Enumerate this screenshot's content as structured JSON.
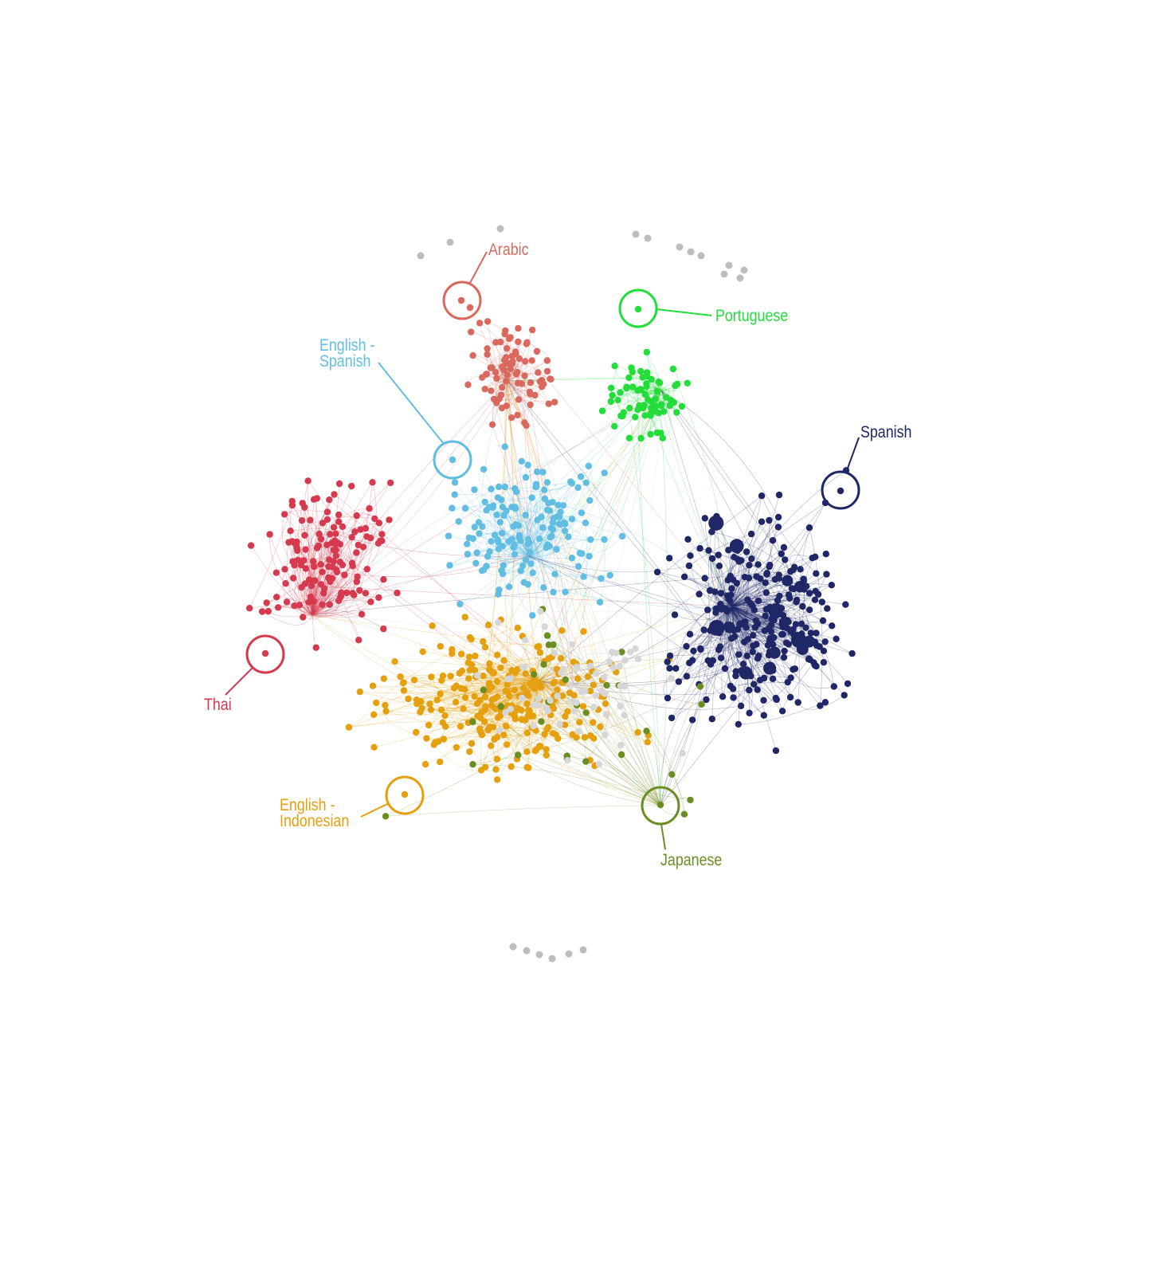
{
  "clusters": [
    {
      "key": "arabic",
      "label": "Arabic",
      "color": "#d9695f"
    },
    {
      "key": "portuguese",
      "label": "Portuguese",
      "color": "#22dd3a"
    },
    {
      "key": "english_spanish",
      "label_lines": [
        "English -",
        "Spanish"
      ],
      "color": "#62bde3"
    },
    {
      "key": "thai",
      "label": "Thai",
      "color": "#d63a4e"
    },
    {
      "key": "english_indonesian",
      "label_lines": [
        "English -",
        "Indonesian"
      ],
      "color": "#e5a010"
    },
    {
      "key": "spanish",
      "label": "Spanish",
      "color": "#1f2766"
    },
    {
      "key": "japanese",
      "label": "Japanese",
      "color": "#6b8e23"
    }
  ],
  "other_color": "#d6d6d6",
  "isolated_color": "#bdbdbd"
}
